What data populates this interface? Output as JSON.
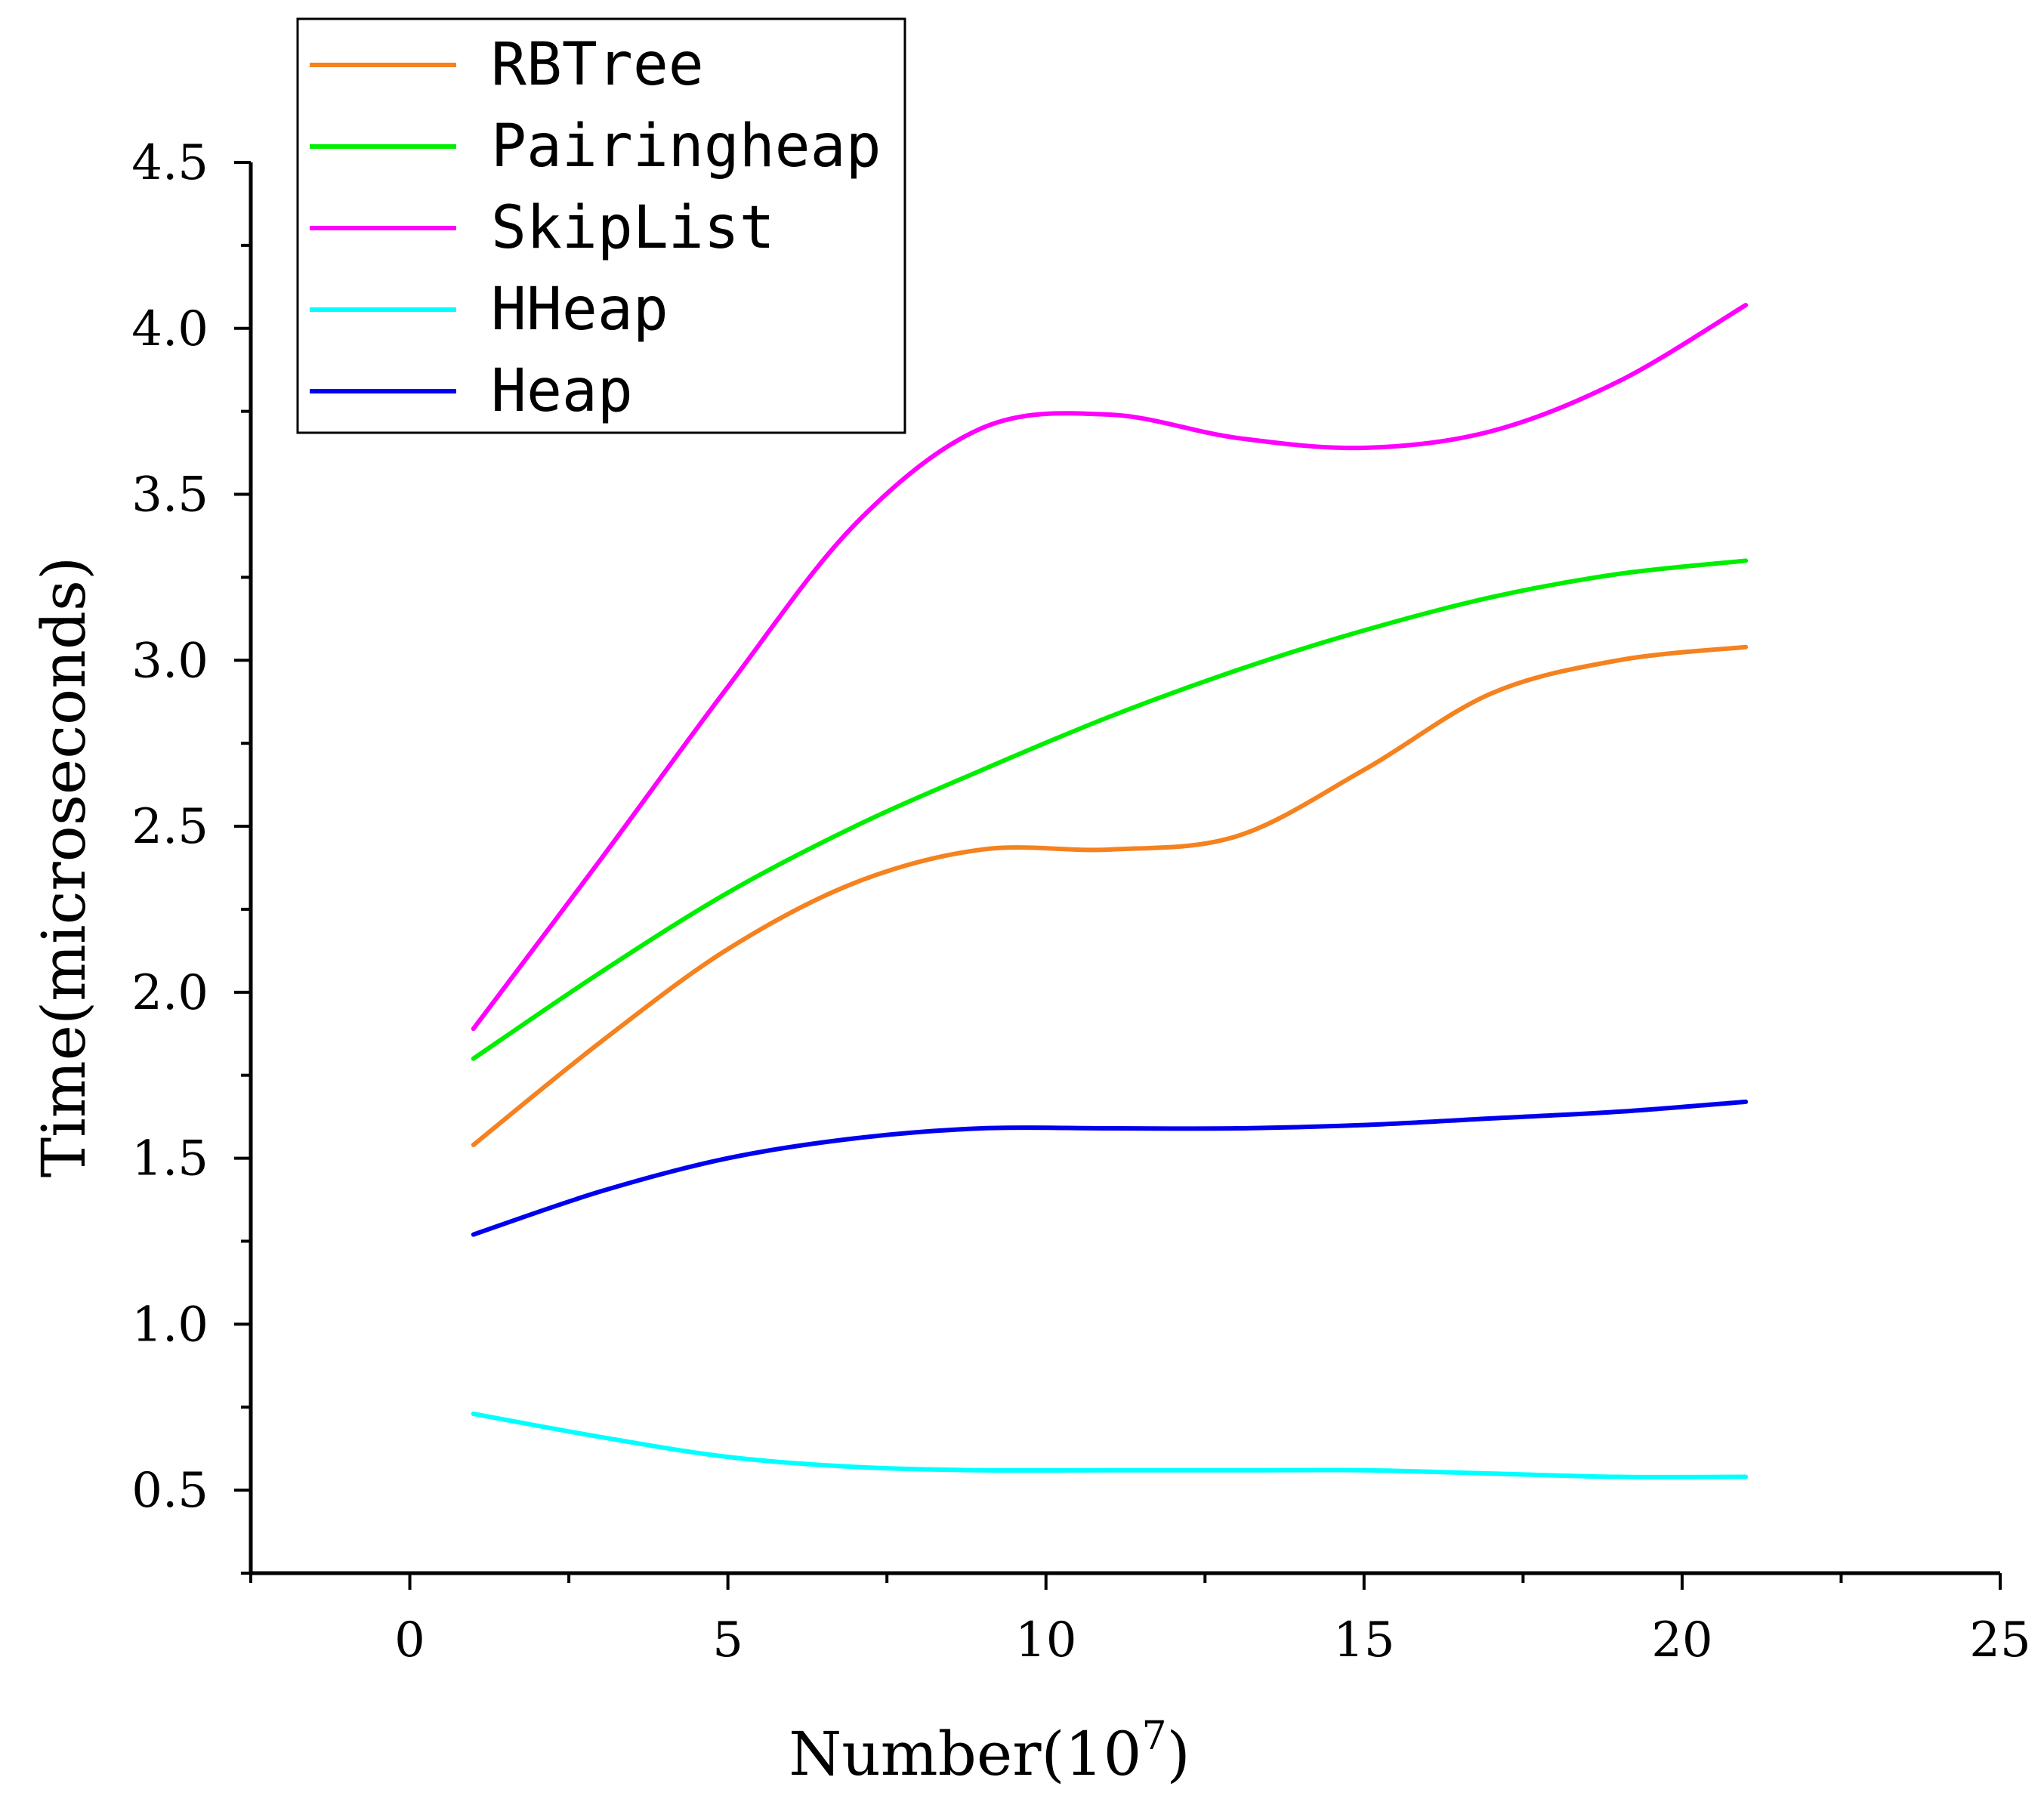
{
  "chart_data": {
    "type": "line",
    "title": "",
    "xlabel": "Number(10",
    "xlabel_exponent": "7",
    "xlabel_suffix": ")",
    "ylabel": "Time(microseconds)",
    "xlim": [
      -2.5,
      25
    ],
    "ylim": [
      0.25,
      4.5
    ],
    "x_ticks": [
      0,
      5,
      10,
      15,
      20,
      25
    ],
    "x_tick_labels": [
      "0",
      "5",
      "10",
      "15",
      "20",
      "25"
    ],
    "y_ticks": [
      0.5,
      1.0,
      1.5,
      2.0,
      2.5,
      3.0,
      3.5,
      4.0,
      4.5
    ],
    "y_tick_labels": [
      "0.5",
      "1.0",
      "1.5",
      "2.0",
      "2.5",
      "3.0",
      "3.5",
      "4.0",
      "4.5"
    ],
    "grid": false,
    "legend_position": "top-left",
    "x": [
      1,
      3,
      5,
      7,
      9,
      11,
      13,
      15,
      17,
      19,
      21
    ],
    "series": [
      {
        "name": "RBTree",
        "color": "#f5821f",
        "values": [
          1.54,
          1.85,
          2.13,
          2.33,
          2.43,
          2.43,
          2.47,
          2.67,
          2.9,
          3.0,
          3.04
        ]
      },
      {
        "name": "Pairingheap",
        "color": "#00ee00",
        "values": [
          1.8,
          2.06,
          2.3,
          2.5,
          2.67,
          2.83,
          2.97,
          3.09,
          3.19,
          3.26,
          3.3
        ]
      },
      {
        "name": "SkipList",
        "color": "#ff00ff",
        "values": [
          1.89,
          2.4,
          2.92,
          3.41,
          3.7,
          3.74,
          3.67,
          3.64,
          3.69,
          3.84,
          4.07
        ]
      },
      {
        "name": "HHeap",
        "color": "#00ffff",
        "values": [
          0.73,
          0.66,
          0.6,
          0.57,
          0.56,
          0.56,
          0.56,
          0.56,
          0.55,
          0.54,
          0.54
        ]
      },
      {
        "name": "Heap",
        "color": "#0000ee",
        "values": [
          1.27,
          1.4,
          1.5,
          1.56,
          1.59,
          1.59,
          1.59,
          1.6,
          1.62,
          1.64,
          1.67
        ]
      }
    ]
  }
}
